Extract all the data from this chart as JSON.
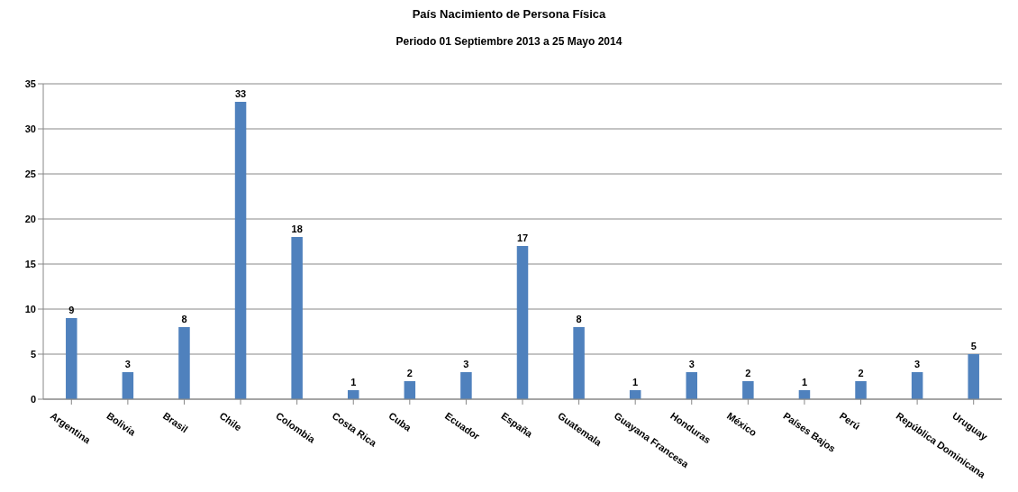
{
  "chart_data": {
    "type": "bar",
    "title": "País Nacimiento de Persona Física",
    "subtitle": "Periodo 01  Septiembre 2013 a 25 Mayo 2014",
    "categories": [
      "Argentina",
      "Bolivia",
      "Brasil",
      "Chile",
      "Colombia",
      "Costa Rica",
      "Cuba",
      "Ecuador",
      "España",
      "Guatemala",
      "Guayana Francesa",
      "Honduras",
      "México",
      "Países Bajos",
      "Perú",
      "República Dominicana",
      "Uruguay"
    ],
    "values": [
      9,
      3,
      8,
      33,
      18,
      1,
      2,
      3,
      17,
      8,
      1,
      3,
      2,
      1,
      2,
      3,
      5
    ],
    "color": "#4f81bd",
    "ylim": [
      0,
      35
    ],
    "yticks": [
      0,
      5,
      10,
      15,
      20,
      25,
      30,
      35
    ],
    "grid": "y",
    "data_labels": true,
    "legend": false
  }
}
